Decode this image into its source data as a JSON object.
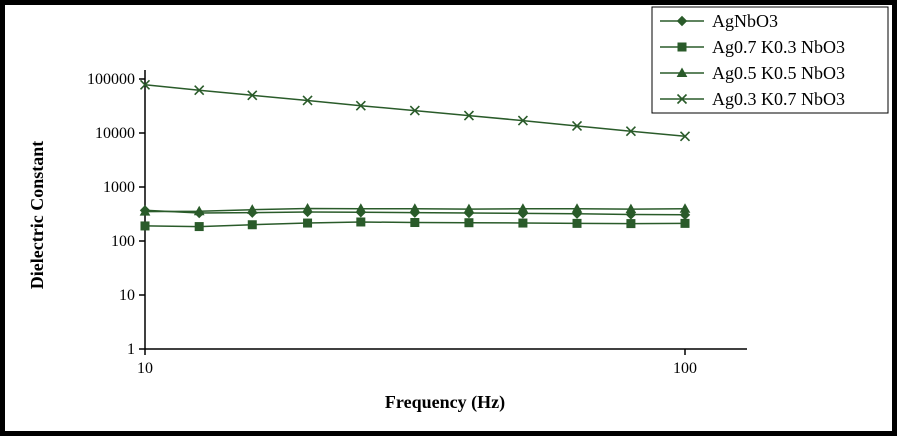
{
  "figure": {
    "background": "#ffffff",
    "frame_color": "#000000",
    "axis_color": "#000000",
    "text_color": "#000000"
  },
  "chart_data": {
    "type": "line",
    "title": "",
    "xlabel": "Frequency (Hz)",
    "ylabel": "Dielectric Constant",
    "x_scale": "log",
    "y_scale": "log",
    "xlim": [
      10,
      100
    ],
    "ylim": [
      1,
      100000
    ],
    "x_ticks": [
      10,
      100
    ],
    "y_ticks": [
      1,
      10,
      100,
      1000,
      10000,
      100000
    ],
    "grid": false,
    "legend_position": "top-right",
    "series_color": "#2a5b2a",
    "x": [
      10,
      12.6,
      15.8,
      20,
      25.1,
      31.6,
      39.8,
      50.1,
      63.1,
      79.4,
      100
    ],
    "series": [
      {
        "name": "AgNbO3",
        "marker": "diamond",
        "values": [
          370,
          330,
          335,
          345,
          340,
          335,
          330,
          325,
          320,
          310,
          305
        ]
      },
      {
        "name": "Ag0.7 K0.3 NbO3",
        "marker": "square",
        "values": [
          190,
          185,
          200,
          215,
          225,
          220,
          218,
          215,
          212,
          210,
          212
        ]
      },
      {
        "name": "Ag0.5 K0.5 NbO3",
        "marker": "triangle",
        "values": [
          350,
          355,
          380,
          400,
          395,
          395,
          390,
          395,
          395,
          390,
          395
        ]
      },
      {
        "name": "Ag0.3 K0.7 NbO3",
        "marker": "x",
        "values": [
          78000,
          62000,
          50000,
          40000,
          32000,
          26000,
          21000,
          17000,
          13500,
          10800,
          8700
        ]
      }
    ]
  }
}
